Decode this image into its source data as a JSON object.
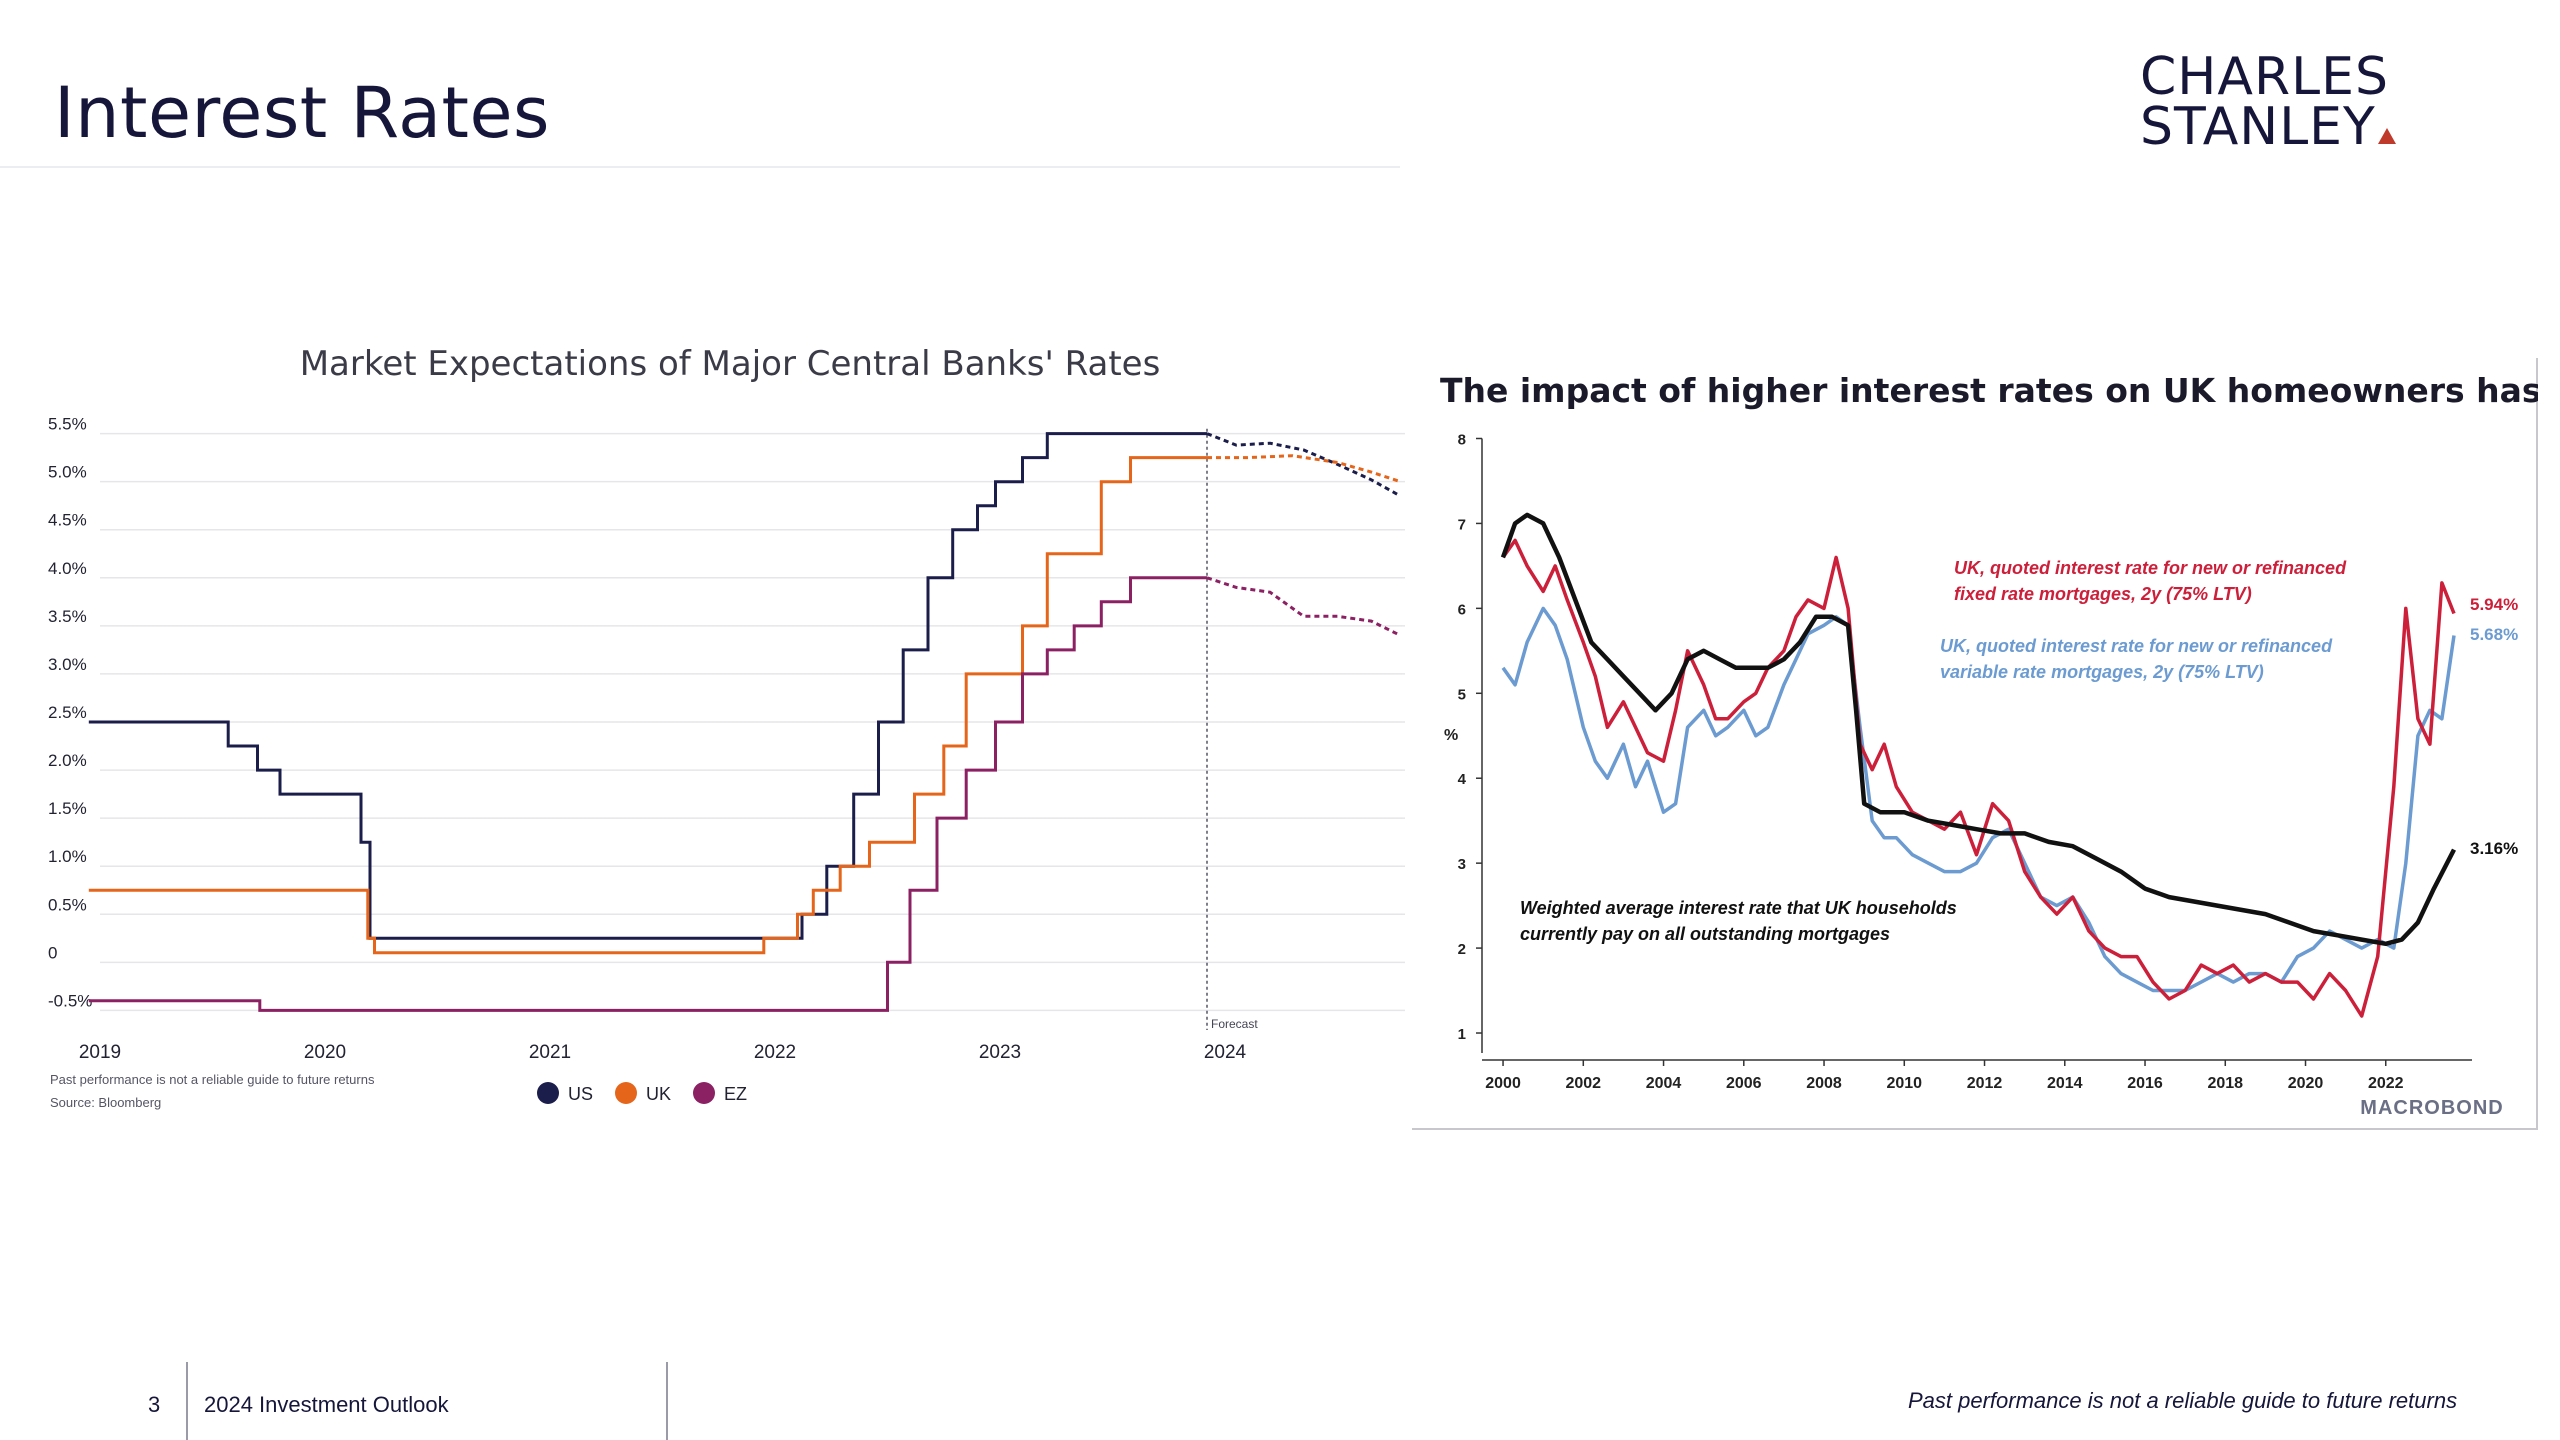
{
  "page": {
    "title": "Interest Rates",
    "logo_line1": "CHARLES",
    "logo_line2": "STANLEY",
    "footer_page": "3",
    "footer_doc": "2024 Investment Outlook",
    "footer_disclaimer": "Past performance is not a reliable guide to future returns"
  },
  "chart_data": [
    {
      "type": "line",
      "title": "Market Expectations of Major Central Banks' Rates",
      "xlabel": "",
      "ylabel": "",
      "x_ticks": [
        2019,
        2020,
        2021,
        2022,
        2023,
        2024
      ],
      "y_ticks": [
        "5.5%",
        "5.0%",
        "4.5%",
        "4.0%",
        "3.5%",
        "3.0%",
        "2.5%",
        "2.0%",
        "1.5%",
        "1.0%",
        "0.5%",
        "0",
        "-0.5%"
      ],
      "ylim": [
        -0.6,
        5.6
      ],
      "xlim": [
        2019.0,
        2024.8
      ],
      "grid": true,
      "legend_position": "bottom-center",
      "annotation": "Forecast",
      "forecast_start": 2023.92,
      "note": "Past performance is not a reliable guide to future returns",
      "source": "Source: Bloomberg",
      "colors": {
        "US": "#1b1d4a",
        "UK": "#e5651a",
        "EZ": "#8b2063"
      },
      "series": [
        {
          "name": "US",
          "x": [
            2018.95,
            2019.57,
            2019.57,
            2019.7,
            2019.7,
            2019.8,
            2019.8,
            2020.16,
            2020.16,
            2020.2,
            2020.2,
            2022.12,
            2022.12,
            2022.23,
            2022.23,
            2022.35,
            2022.35,
            2022.46,
            2022.46,
            2022.57,
            2022.57,
            2022.68,
            2022.68,
            2022.79,
            2022.79,
            2022.9,
            2022.9,
            2022.98,
            2022.98,
            2023.1,
            2023.1,
            2023.21,
            2023.21,
            2023.32,
            2023.32,
            2023.45,
            2023.45,
            2023.58,
            2023.58,
            2023.92
          ],
          "y": [
            2.5,
            2.5,
            2.25,
            2.25,
            2.0,
            2.0,
            1.75,
            1.75,
            1.25,
            1.25,
            0.25,
            0.25,
            0.5,
            0.5,
            1.0,
            1.0,
            1.75,
            1.75,
            2.5,
            2.5,
            3.25,
            3.25,
            4.0,
            4.0,
            4.5,
            4.5,
            4.75,
            4.75,
            5.0,
            5.0,
            5.25,
            5.25,
            5.5,
            5.5,
            5.5,
            5.5,
            5.5,
            5.5,
            5.5,
            5.5
          ],
          "forecast_x": [
            2023.92,
            2024.05,
            2024.2,
            2024.35,
            2024.5,
            2024.65,
            2024.78
          ],
          "forecast_y": [
            5.5,
            5.38,
            5.4,
            5.33,
            5.18,
            5.02,
            4.85
          ]
        },
        {
          "name": "UK",
          "x": [
            2018.95,
            2020.19,
            2020.19,
            2020.22,
            2020.22,
            2021.95,
            2021.95,
            2022.1,
            2022.1,
            2022.17,
            2022.17,
            2022.29,
            2022.29,
            2022.42,
            2022.42,
            2022.62,
            2022.62,
            2022.75,
            2022.75,
            2022.85,
            2022.85,
            2023.1,
            2023.1,
            2023.21,
            2023.21,
            2023.45,
            2023.45,
            2023.58,
            2023.58,
            2023.92
          ],
          "y": [
            0.75,
            0.75,
            0.25,
            0.25,
            0.1,
            0.1,
            0.25,
            0.25,
            0.5,
            0.5,
            0.75,
            0.75,
            1.0,
            1.0,
            1.25,
            1.25,
            1.75,
            1.75,
            2.25,
            2.25,
            3.0,
            3.0,
            3.5,
            3.5,
            4.25,
            4.25,
            5.0,
            5.0,
            5.25,
            5.25
          ],
          "forecast_x": [
            2023.92,
            2024.1,
            2024.3,
            2024.5,
            2024.65,
            2024.78
          ],
          "forecast_y": [
            5.25,
            5.25,
            5.27,
            5.2,
            5.1,
            5.0
          ]
        },
        {
          "name": "EZ",
          "x": [
            2018.95,
            2019.71,
            2019.71,
            2022.5,
            2022.5,
            2022.6,
            2022.6,
            2022.72,
            2022.72,
            2022.85,
            2022.85,
            2022.98,
            2022.98,
            2023.1,
            2023.1,
            2023.21,
            2023.21,
            2023.33,
            2023.33,
            2023.45,
            2023.45,
            2023.58,
            2023.58,
            2023.7,
            2023.7,
            2023.92
          ],
          "y": [
            -0.4,
            -0.4,
            -0.5,
            -0.5,
            0.0,
            0.0,
            0.75,
            0.75,
            1.5,
            1.5,
            2.0,
            2.0,
            2.5,
            2.5,
            3.0,
            3.0,
            3.25,
            3.25,
            3.5,
            3.5,
            3.75,
            3.75,
            4.0,
            4.0,
            4.0,
            4.0
          ],
          "forecast_x": [
            2023.92,
            2024.05,
            2024.2,
            2024.35,
            2024.5,
            2024.65,
            2024.78
          ],
          "forecast_y": [
            4.0,
            3.9,
            3.85,
            3.6,
            3.6,
            3.55,
            3.4
          ]
        }
      ]
    },
    {
      "type": "line",
      "title": "The impact of higher interest rates on UK homeowners has just begun",
      "xlabel": "",
      "ylabel": "%",
      "x_ticks": [
        2000,
        2002,
        2004,
        2006,
        2008,
        2010,
        2012,
        2014,
        2016,
        2018,
        2020,
        2022
      ],
      "y_ticks": [
        1,
        2,
        3,
        4,
        5,
        6,
        7,
        8
      ],
      "ylim": [
        0.8,
        8.1
      ],
      "xlim": [
        1999.6,
        2023.9
      ],
      "grid": false,
      "source_logo": "MACROBOND",
      "annotations": [
        {
          "text_line1": "UK, quoted interest rate for new or refinanced",
          "text_line2": "fixed rate mortgages, 2y (75% LTV)",
          "color": "#cc1f3a"
        },
        {
          "text_line1": "UK, quoted interest rate for new or refinanced",
          "text_line2": "variable rate mortgages, 2y (75% LTV)",
          "color": "#6b9bd0"
        },
        {
          "text_line1": "Weighted average interest rate that UK households",
          "text_line2": "currently pay on all outstanding mortgages",
          "color": "#111111"
        }
      ],
      "end_labels": [
        {
          "text": "5.94%",
          "value": 5.94,
          "color": "#cc1f3a"
        },
        {
          "text": "5.68%",
          "value": 5.68,
          "color": "#6b9bd0"
        },
        {
          "text": "3.16%",
          "value": 3.16,
          "color": "#111111"
        }
      ],
      "colors": {
        "fixed": "#cc1f3a",
        "variable": "#6b9bd0",
        "weighted": "#111111"
      },
      "series": [
        {
          "key": "variable",
          "x": [
            2000.0,
            2000.3,
            2000.6,
            2001.0,
            2001.3,
            2001.6,
            2002.0,
            2002.3,
            2002.6,
            2003.0,
            2003.3,
            2003.6,
            2004.0,
            2004.3,
            2004.6,
            2005.0,
            2005.3,
            2005.6,
            2006.0,
            2006.3,
            2006.6,
            2007.0,
            2007.3,
            2007.6,
            2008.0,
            2008.3,
            2008.6,
            2008.9,
            2009.2,
            2009.5,
            2009.8,
            2010.2,
            2010.6,
            2011.0,
            2011.4,
            2011.8,
            2012.2,
            2012.6,
            2013.0,
            2013.4,
            2013.8,
            2014.2,
            2014.6,
            2015.0,
            2015.4,
            2015.8,
            2016.2,
            2016.6,
            2017.0,
            2017.4,
            2017.8,
            2018.2,
            2018.6,
            2019.0,
            2019.4,
            2019.8,
            2020.2,
            2020.6,
            2021.0,
            2021.4,
            2021.8,
            2022.2,
            2022.5,
            2022.8,
            2023.1,
            2023.4,
            2023.7
          ],
          "y": [
            5.3,
            5.1,
            5.6,
            6.0,
            5.8,
            5.4,
            4.6,
            4.2,
            4.0,
            4.4,
            3.9,
            4.2,
            3.6,
            3.7,
            4.6,
            4.8,
            4.5,
            4.6,
            4.8,
            4.5,
            4.6,
            5.1,
            5.4,
            5.7,
            5.8,
            5.9,
            5.8,
            4.6,
            3.5,
            3.3,
            3.3,
            3.1,
            3.0,
            2.9,
            2.9,
            3.0,
            3.3,
            3.4,
            3.0,
            2.6,
            2.5,
            2.6,
            2.3,
            1.9,
            1.7,
            1.6,
            1.5,
            1.5,
            1.5,
            1.6,
            1.7,
            1.6,
            1.7,
            1.7,
            1.6,
            1.9,
            2.0,
            2.2,
            2.1,
            2.0,
            2.1,
            2.0,
            3.0,
            4.5,
            4.8,
            4.7,
            5.68
          ]
        },
        {
          "key": "fixed",
          "x": [
            2000.0,
            2000.3,
            2000.6,
            2001.0,
            2001.3,
            2001.6,
            2002.0,
            2002.3,
            2002.6,
            2003.0,
            2003.3,
            2003.6,
            2004.0,
            2004.3,
            2004.6,
            2005.0,
            2005.3,
            2005.6,
            2006.0,
            2006.3,
            2006.6,
            2007.0,
            2007.3,
            2007.6,
            2008.0,
            2008.3,
            2008.6,
            2008.9,
            2009.2,
            2009.5,
            2009.8,
            2010.2,
            2010.6,
            2011.0,
            2011.4,
            2011.8,
            2012.2,
            2012.6,
            2013.0,
            2013.4,
            2013.8,
            2014.2,
            2014.6,
            2015.0,
            2015.4,
            2015.8,
            2016.2,
            2016.6,
            2017.0,
            2017.4,
            2017.8,
            2018.2,
            2018.6,
            2019.0,
            2019.4,
            2019.8,
            2020.2,
            2020.6,
            2021.0,
            2021.4,
            2021.8,
            2022.2,
            2022.5,
            2022.8,
            2023.1,
            2023.4,
            2023.7
          ],
          "y": [
            6.6,
            6.8,
            6.5,
            6.2,
            6.5,
            6.1,
            5.6,
            5.2,
            4.6,
            4.9,
            4.6,
            4.3,
            4.2,
            4.8,
            5.5,
            5.1,
            4.7,
            4.7,
            4.9,
            5.0,
            5.3,
            5.5,
            5.9,
            6.1,
            6.0,
            6.6,
            6.0,
            4.4,
            4.1,
            4.4,
            3.9,
            3.6,
            3.5,
            3.4,
            3.6,
            3.1,
            3.7,
            3.5,
            2.9,
            2.6,
            2.4,
            2.6,
            2.2,
            2.0,
            1.9,
            1.9,
            1.6,
            1.4,
            1.5,
            1.8,
            1.7,
            1.8,
            1.6,
            1.7,
            1.6,
            1.6,
            1.4,
            1.7,
            1.5,
            1.2,
            1.9,
            3.9,
            6.0,
            4.7,
            4.4,
            6.3,
            5.94
          ]
        },
        {
          "key": "weighted",
          "x": [
            2000.0,
            2000.3,
            2000.6,
            2001.0,
            2001.4,
            2001.8,
            2002.2,
            2002.6,
            2003.0,
            2003.4,
            2003.8,
            2004.2,
            2004.6,
            2005.0,
            2005.4,
            2005.8,
            2006.2,
            2006.6,
            2007.0,
            2007.4,
            2007.8,
            2008.2,
            2008.6,
            2008.8,
            2009.0,
            2009.4,
            2010.0,
            2010.6,
            2011.2,
            2011.8,
            2012.4,
            2013.0,
            2013.6,
            2014.2,
            2014.8,
            2015.4,
            2016.0,
            2016.6,
            2017.2,
            2017.8,
            2018.4,
            2019.0,
            2019.6,
            2020.2,
            2020.8,
            2021.4,
            2022.0,
            2022.4,
            2022.8,
            2023.2,
            2023.7
          ],
          "y": [
            6.6,
            7.0,
            7.1,
            7.0,
            6.6,
            6.1,
            5.6,
            5.4,
            5.2,
            5.0,
            4.8,
            5.0,
            5.4,
            5.5,
            5.4,
            5.3,
            5.3,
            5.3,
            5.4,
            5.6,
            5.9,
            5.9,
            5.8,
            4.8,
            3.7,
            3.6,
            3.6,
            3.5,
            3.45,
            3.4,
            3.35,
            3.35,
            3.25,
            3.2,
            3.05,
            2.9,
            2.7,
            2.6,
            2.55,
            2.5,
            2.45,
            2.4,
            2.3,
            2.2,
            2.15,
            2.1,
            2.05,
            2.1,
            2.3,
            2.7,
            3.16
          ]
        }
      ]
    }
  ]
}
